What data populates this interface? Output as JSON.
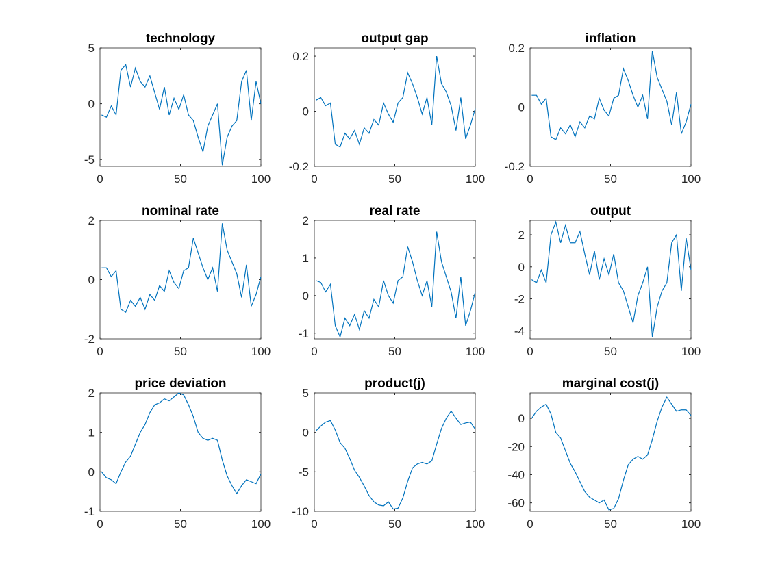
{
  "chart_data": [
    {
      "type": "line",
      "title": "technology",
      "color": "#0072bd",
      "xlim": [
        0,
        100
      ],
      "xticks": [
        0,
        50,
        100
      ],
      "ylim": [
        -5.6,
        5
      ],
      "yticks": [
        -5,
        0,
        5
      ],
      "x": [
        1,
        4,
        7,
        10,
        13,
        16,
        19,
        22,
        25,
        28,
        31,
        34,
        37,
        40,
        43,
        46,
        49,
        52,
        55,
        58,
        61,
        64,
        67,
        70,
        73,
        76,
        79,
        82,
        85,
        88,
        91,
        94,
        97,
        100
      ],
      "values": [
        -1,
        -1.2,
        -0.2,
        -1,
        3,
        3.5,
        1.5,
        3.2,
        2,
        1.5,
        2.5,
        1,
        -0.5,
        1.5,
        -1,
        0.5,
        -0.5,
        0.8,
        -1,
        -1.5,
        -3,
        -4.3,
        -2,
        -1,
        0,
        -5.5,
        -3,
        -2,
        -1.5,
        2,
        3,
        -1.5,
        2,
        0
      ]
    },
    {
      "type": "line",
      "title": "output gap",
      "color": "#0072bd",
      "xlim": [
        0,
        100
      ],
      "xticks": [
        0,
        50,
        100
      ],
      "ylim": [
        -0.2,
        0.23
      ],
      "yticks": [
        -0.2,
        0,
        0.2
      ],
      "x": [
        1,
        4,
        7,
        10,
        13,
        16,
        19,
        22,
        25,
        28,
        31,
        34,
        37,
        40,
        43,
        46,
        49,
        52,
        55,
        58,
        61,
        64,
        67,
        70,
        73,
        76,
        79,
        82,
        85,
        88,
        91,
        94,
        97,
        100
      ],
      "values": [
        0.04,
        0.05,
        0.02,
        0.03,
        -0.12,
        -0.13,
        -0.08,
        -0.1,
        -0.07,
        -0.12,
        -0.06,
        -0.08,
        -0.03,
        -0.05,
        0.03,
        -0.01,
        -0.04,
        0.03,
        0.05,
        0.14,
        0.1,
        0.05,
        -0.01,
        0.05,
        -0.05,
        0.2,
        0.1,
        0.07,
        0.02,
        -0.07,
        0.05,
        -0.1,
        -0.05,
        0.01
      ]
    },
    {
      "type": "line",
      "title": "inflation",
      "color": "#0072bd",
      "xlim": [
        0,
        100
      ],
      "xticks": [
        0,
        50,
        100
      ],
      "ylim": [
        -0.2,
        0.2
      ],
      "yticks": [
        -0.2,
        0,
        0.2
      ],
      "x": [
        1,
        4,
        7,
        10,
        13,
        16,
        19,
        22,
        25,
        28,
        31,
        34,
        37,
        40,
        43,
        46,
        49,
        52,
        55,
        58,
        61,
        64,
        67,
        70,
        73,
        76,
        79,
        82,
        85,
        88,
        91,
        94,
        97,
        100
      ],
      "values": [
        0.04,
        0.04,
        0.01,
        0.03,
        -0.1,
        -0.11,
        -0.07,
        -0.09,
        -0.06,
        -0.1,
        -0.05,
        -0.07,
        -0.03,
        -0.04,
        0.03,
        -0.01,
        -0.03,
        0.03,
        0.04,
        0.13,
        0.09,
        0.04,
        0,
        0.04,
        -0.04,
        0.19,
        0.1,
        0.06,
        0.02,
        -0.06,
        0.05,
        -0.09,
        -0.05,
        0.01
      ]
    },
    {
      "type": "line",
      "title": "nominal rate",
      "color": "#0072bd",
      "xlim": [
        0,
        100
      ],
      "xticks": [
        0,
        50,
        100
      ],
      "ylim": [
        -2,
        2
      ],
      "yticks": [
        -2,
        0,
        2
      ],
      "x": [
        1,
        4,
        7,
        10,
        13,
        16,
        19,
        22,
        25,
        28,
        31,
        34,
        37,
        40,
        43,
        46,
        49,
        52,
        55,
        58,
        61,
        64,
        67,
        70,
        73,
        76,
        79,
        82,
        85,
        88,
        91,
        94,
        97,
        100
      ],
      "values": [
        0.4,
        0.4,
        0.1,
        0.3,
        -1,
        -1.1,
        -0.7,
        -0.9,
        -0.6,
        -1,
        -0.5,
        -0.7,
        -0.2,
        -0.4,
        0.3,
        -0.1,
        -0.3,
        0.3,
        0.4,
        1.4,
        0.9,
        0.4,
        0,
        0.4,
        -0.4,
        1.9,
        1,
        0.6,
        0.2,
        -0.6,
        0.5,
        -0.9,
        -0.5,
        0.1
      ]
    },
    {
      "type": "line",
      "title": "real rate",
      "color": "#0072bd",
      "xlim": [
        0,
        100
      ],
      "xticks": [
        0,
        50,
        100
      ],
      "ylim": [
        -1.15,
        2
      ],
      "yticks": [
        -1,
        0,
        1,
        2
      ],
      "x": [
        1,
        4,
        7,
        10,
        13,
        16,
        19,
        22,
        25,
        28,
        31,
        34,
        37,
        40,
        43,
        46,
        49,
        52,
        55,
        58,
        61,
        64,
        67,
        70,
        73,
        76,
        79,
        82,
        85,
        88,
        91,
        94,
        97,
        100
      ],
      "values": [
        0.4,
        0.35,
        0.1,
        0.3,
        -0.8,
        -1.1,
        -0.6,
        -0.8,
        -0.5,
        -0.9,
        -0.4,
        -0.6,
        -0.1,
        -0.3,
        0.4,
        0,
        -0.2,
        0.4,
        0.5,
        1.3,
        0.9,
        0.4,
        0,
        0.4,
        -0.3,
        1.7,
        0.9,
        0.5,
        0.1,
        -0.6,
        0.5,
        -0.8,
        -0.4,
        0.1
      ]
    },
    {
      "type": "line",
      "title": "output",
      "color": "#0072bd",
      "xlim": [
        0,
        100
      ],
      "xticks": [
        0,
        50,
        100
      ],
      "ylim": [
        -4.5,
        2.9
      ],
      "yticks": [
        -4,
        -2,
        0,
        2
      ],
      "x": [
        1,
        4,
        7,
        10,
        13,
        16,
        19,
        22,
        25,
        28,
        31,
        34,
        37,
        40,
        43,
        46,
        49,
        52,
        55,
        58,
        61,
        64,
        67,
        70,
        73,
        76,
        79,
        82,
        85,
        88,
        91,
        94,
        97,
        100
      ],
      "values": [
        -0.8,
        -1,
        -0.2,
        -1,
        2,
        2.8,
        1.5,
        2.6,
        1.5,
        1.5,
        2.2,
        0.8,
        -0.5,
        1,
        -0.8,
        0.5,
        -0.5,
        0.8,
        -1,
        -1.5,
        -2.5,
        -3.5,
        -1.8,
        -1,
        0,
        -4.4,
        -2.5,
        -1.5,
        -1,
        1.5,
        2,
        -1.5,
        1.8,
        -0.2
      ]
    },
    {
      "type": "line",
      "title": "price deviation",
      "color": "#0072bd",
      "xlim": [
        0,
        100
      ],
      "xticks": [
        0,
        50,
        100
      ],
      "ylim": [
        -1,
        2
      ],
      "yticks": [
        -1,
        0,
        1,
        2
      ],
      "x": [
        1,
        4,
        7,
        10,
        13,
        16,
        19,
        22,
        25,
        28,
        31,
        34,
        37,
        40,
        43,
        46,
        49,
        52,
        55,
        58,
        61,
        64,
        67,
        70,
        73,
        76,
        79,
        82,
        85,
        88,
        91,
        94,
        97,
        100
      ],
      "values": [
        0,
        -0.15,
        -0.2,
        -0.3,
        0,
        0.25,
        0.4,
        0.7,
        1,
        1.2,
        1.5,
        1.7,
        1.75,
        1.85,
        1.8,
        1.9,
        2,
        1.95,
        1.7,
        1.4,
        1,
        0.85,
        0.8,
        0.85,
        0.8,
        0.3,
        -0.1,
        -0.35,
        -0.55,
        -0.35,
        -0.2,
        -0.25,
        -0.3,
        -0.05
      ]
    },
    {
      "type": "line",
      "title": "product(j)",
      "color": "#0072bd",
      "xlim": [
        0,
        100
      ],
      "xticks": [
        0,
        50,
        100
      ],
      "ylim": [
        -10,
        5
      ],
      "yticks": [
        -10,
        -5,
        0,
        5
      ],
      "x": [
        1,
        4,
        7,
        10,
        13,
        16,
        19,
        22,
        25,
        28,
        31,
        34,
        37,
        40,
        43,
        46,
        49,
        52,
        55,
        58,
        61,
        64,
        67,
        70,
        73,
        76,
        79,
        82,
        85,
        88,
        91,
        94,
        97,
        100
      ],
      "values": [
        0.2,
        0.8,
        1.3,
        1.5,
        0.3,
        -1.3,
        -2,
        -3.3,
        -4.8,
        -5.7,
        -6.8,
        -8,
        -8.8,
        -9.2,
        -9.3,
        -8.8,
        -9.7,
        -9.6,
        -8.3,
        -6.2,
        -4.5,
        -4,
        -3.8,
        -4,
        -3.6,
        -1.5,
        0.5,
        1.8,
        2.7,
        1.8,
        1,
        1.2,
        1.3,
        0.4
      ]
    },
    {
      "type": "line",
      "title": "marginal cost(j)",
      "color": "#0072bd",
      "xlim": [
        0,
        100
      ],
      "xticks": [
        0,
        50,
        100
      ],
      "ylim": [
        -66,
        18
      ],
      "yticks": [
        -60,
        -40,
        -20,
        0
      ],
      "x": [
        1,
        4,
        7,
        10,
        13,
        16,
        19,
        22,
        25,
        28,
        31,
        34,
        37,
        40,
        43,
        46,
        49,
        52,
        55,
        58,
        61,
        64,
        67,
        70,
        73,
        76,
        79,
        82,
        85,
        88,
        91,
        94,
        97,
        100
      ],
      "values": [
        0,
        5,
        8,
        10,
        3,
        -10,
        -14,
        -23,
        -32,
        -38,
        -45,
        -52,
        -56,
        -58,
        -60,
        -58,
        -65,
        -64,
        -57,
        -44,
        -33,
        -29,
        -27,
        -29,
        -26,
        -15,
        -2,
        8,
        15,
        10,
        5,
        6,
        6,
        2
      ]
    }
  ]
}
